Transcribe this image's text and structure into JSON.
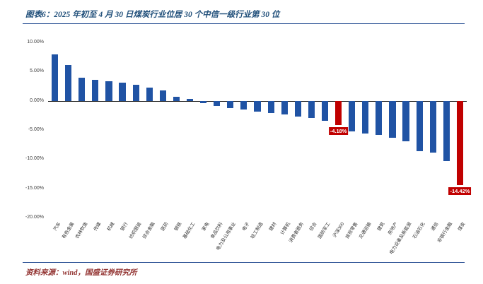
{
  "header": {
    "title": "图表6：2025 年初至 4 月 30 日煤炭行业位居 30 个中信一级行业第 30 位"
  },
  "footer": {
    "source": "资料来源：wind，国盛证券研究所"
  },
  "colors": {
    "title": "#1F4E79",
    "rule": "#2E5496",
    "bar": "#2053A4",
    "highlight": "#C00000",
    "footer": "#943634",
    "axis_text": "#404040"
  },
  "chart_data": {
    "type": "bar",
    "title": "2025年初至4月30日中信一级行业涨跌幅",
    "categories": [
      "汽车",
      "有色金属",
      "农林牧渔",
      "传媒",
      "机械",
      "银行",
      "纺织服装",
      "综合金融",
      "医药",
      "钢铁",
      "基础化工",
      "家电",
      "食品饮料",
      "电力及公用事业",
      "电子",
      "轻工制造",
      "建材",
      "计算机",
      "消费者服务",
      "综合",
      "国防军工",
      "沪深300",
      "商贸零售",
      "交通运输",
      "建筑",
      "房地产",
      "电力设备及新能源",
      "石油石化",
      "通信",
      "非银行金融",
      "煤炭"
    ],
    "values": [
      7.9,
      6.1,
      3.9,
      3.6,
      3.3,
      3.1,
      2.8,
      2.3,
      1.8,
      0.7,
      0.3,
      -0.4,
      -0.9,
      -1.2,
      -1.5,
      -1.8,
      -2.1,
      -2.4,
      -2.7,
      -3.0,
      -3.4,
      -4.18,
      -5.3,
      -5.6,
      -5.9,
      -6.3,
      -6.9,
      -8.6,
      -8.9,
      -10.3,
      -14.42
    ],
    "highlights": [
      {
        "index": 21,
        "category": "沪深300",
        "label": "-4.18%"
      },
      {
        "index": 30,
        "category": "煤炭",
        "label": "-14.42%"
      }
    ],
    "ylim": [
      -20,
      10
    ],
    "yticks": [
      10,
      5,
      0,
      -5,
      -10,
      -15,
      -20
    ],
    "ytick_labels": [
      "10.00%",
      "5.00%",
      "0.00%",
      "-5.00%",
      "-10.00%",
      "-15.00%",
      "-20.00%"
    ],
    "grid": false,
    "legend": "none",
    "xlabel": "",
    "ylabel": ""
  }
}
